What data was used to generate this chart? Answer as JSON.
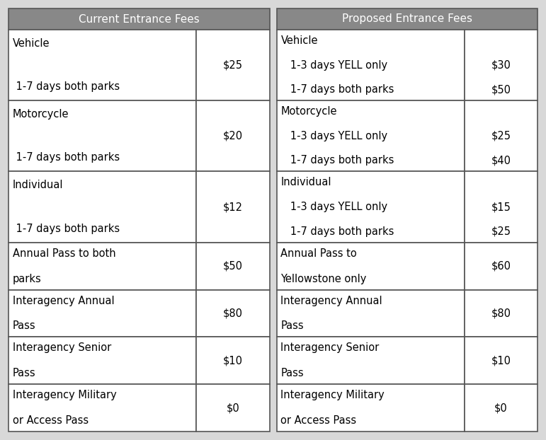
{
  "header_color": "#888888",
  "header_text_color": "#ffffff",
  "bg_color": "#d8d8d8",
  "cell_bg_color": "#ffffff",
  "border_color": "#555555",
  "text_color": "#000000",
  "header_left": "Current Entrance Fees",
  "header_right": "Proposed Entrance Fees",
  "figsize": [
    7.71,
    6.22
  ],
  "dpi": 100,
  "left_rows": [
    {
      "lines": [
        "Vehicle",
        " 1-7 days both parks"
      ],
      "price": "$25",
      "tall": true
    },
    {
      "lines": [
        "Motorcycle",
        " 1-7 days both parks"
      ],
      "price": "$20",
      "tall": true
    },
    {
      "lines": [
        "Individual",
        " 1-7 days both parks"
      ],
      "price": "$12",
      "tall": true
    },
    {
      "lines": [
        "Annual Pass to both",
        "parks"
      ],
      "price": "$50",
      "tall": false
    },
    {
      "lines": [
        "Interagency Annual",
        "Pass"
      ],
      "price": "$80",
      "tall": false
    },
    {
      "lines": [
        "Interagency Senior",
        "Pass"
      ],
      "price": "$10",
      "tall": false
    },
    {
      "lines": [
        "Interagency Military",
        "or Access Pass"
      ],
      "price": "$0",
      "tall": false
    }
  ],
  "right_rows": [
    {
      "lines": [
        "Vehicle",
        "   1-3 days YELL only",
        "   1-7 days both parks"
      ],
      "prices": [
        "",
        "$30",
        "$50"
      ],
      "tall": true
    },
    {
      "lines": [
        "Motorcycle",
        "   1-3 days YELL only",
        "   1-7 days both parks"
      ],
      "prices": [
        "",
        "$25",
        "$40"
      ],
      "tall": true
    },
    {
      "lines": [
        "Individual",
        "   1-3 days YELL only",
        "   1-7 days both parks"
      ],
      "prices": [
        "",
        "$15",
        "$25"
      ],
      "tall": true
    },
    {
      "lines": [
        "Annual Pass to",
        "Yellowstone only"
      ],
      "prices": [
        "$60"
      ],
      "tall": false
    },
    {
      "lines": [
        "Interagency Annual",
        "Pass"
      ],
      "prices": [
        "$80"
      ],
      "tall": false
    },
    {
      "lines": [
        "Interagency Senior",
        "Pass"
      ],
      "prices": [
        "$10"
      ],
      "tall": false
    },
    {
      "lines": [
        "Interagency Military",
        "or Access Pass"
      ],
      "prices": [
        "$0"
      ],
      "tall": false
    }
  ]
}
